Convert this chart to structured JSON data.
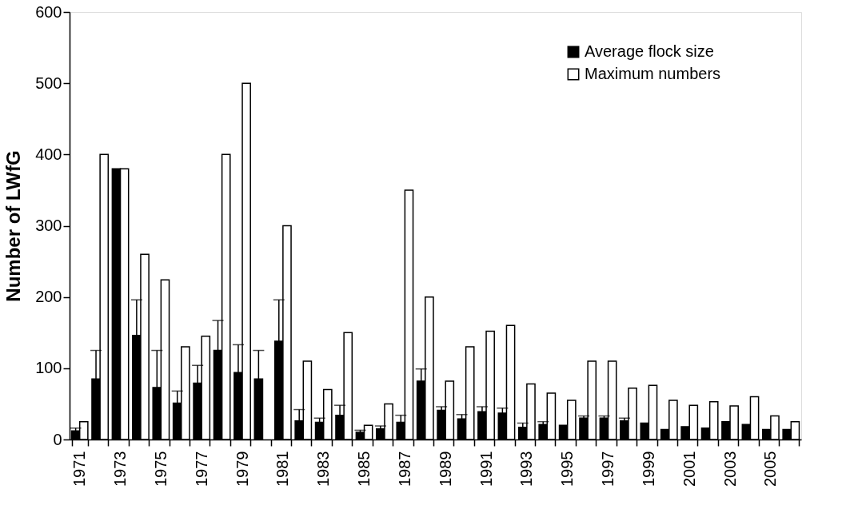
{
  "chart_data": {
    "type": "bar",
    "ylabel": "Number of LWfG",
    "categories": [
      "1971",
      null,
      "1973",
      null,
      "1975",
      null,
      "1977",
      null,
      "1979",
      null,
      "1981",
      null,
      "1983",
      null,
      "1985",
      null,
      "1987",
      null,
      "1989",
      null,
      "1991",
      null,
      "1993",
      null,
      "1995",
      null,
      "1997",
      null,
      "1999",
      null,
      "2001",
      null,
      "2003",
      null,
      "2005",
      null
    ],
    "series": [
      {
        "name": "Average flock size",
        "color": "#000000",
        "values": [
          12,
          85,
          380,
          146,
          73,
          51,
          79,
          125,
          94,
          85,
          138,
          26,
          24,
          34,
          10,
          15,
          24,
          82,
          41,
          29,
          39,
          37,
          17,
          21,
          20,
          30,
          30,
          26,
          23,
          14,
          18,
          16,
          25,
          21,
          14,
          14
        ],
        "errors": [
          [
            12,
            16
          ],
          [
            85,
            125
          ],
          null,
          [
            146,
            196
          ],
          [
            73,
            125
          ],
          [
            51,
            68
          ],
          [
            79,
            104
          ],
          [
            125,
            167
          ],
          [
            94,
            133
          ],
          [
            85,
            125
          ],
          [
            138,
            196
          ],
          [
            26,
            42
          ],
          [
            24,
            30
          ],
          [
            34,
            48
          ],
          [
            10,
            13
          ],
          [
            15,
            19
          ],
          [
            24,
            34
          ],
          [
            82,
            99
          ],
          [
            41,
            46
          ],
          [
            29,
            35
          ],
          [
            39,
            46
          ],
          [
            37,
            44
          ],
          [
            17,
            23
          ],
          [
            21,
            25
          ],
          null,
          [
            30,
            33
          ],
          [
            30,
            33
          ],
          [
            26,
            30
          ],
          null,
          null,
          null,
          null,
          null,
          null,
          null,
          null
        ]
      },
      {
        "name": "Maximum numbers",
        "color": "#ffffff",
        "values": [
          25,
          400,
          380,
          260,
          224,
          130,
          145,
          400,
          500,
          null,
          300,
          110,
          70,
          150,
          20,
          50,
          350,
          200,
          82,
          130,
          152,
          160,
          78,
          65,
          55,
          110,
          110,
          72,
          76,
          55,
          48,
          53,
          47,
          60,
          33,
          25
        ]
      }
    ],
    "ylim": [
      0,
      600
    ],
    "yticks": [
      0,
      100,
      200,
      300,
      400,
      500,
      600
    ],
    "grid": false,
    "legend": "top right"
  }
}
